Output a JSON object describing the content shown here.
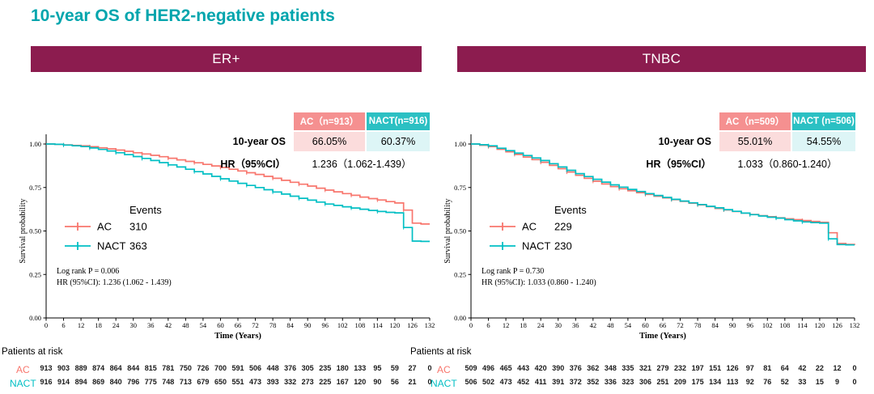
{
  "page_title": "10-year OS of HER2-negative patients",
  "colors": {
    "accent_teal": "#00A5AD",
    "banner": "#8C1C4F",
    "ac": "#F8766D",
    "nact": "#00BFC4",
    "ac_header": "#F59090",
    "nact_header": "#2BC0C3",
    "ac_cell": "#FBDCDC",
    "nact_cell": "#DDF5F6"
  },
  "panels": [
    {
      "banner": "ER+",
      "summary_table": {
        "col_headers": [
          "AC（n=913）",
          "NACT(n=916)"
        ],
        "os_label": "10-year OS",
        "os_values": [
          "66.05%",
          "60.37%"
        ],
        "hr_label": "HR（95%CI）",
        "hr_value": "1.236（1.062-1.439）"
      },
      "risk_title": "Patients at risk",
      "risk_rows": [
        {
          "name": "AC",
          "counts": [
            913,
            903,
            889,
            874,
            864,
            844,
            815,
            781,
            750,
            726,
            700,
            591,
            506,
            448,
            376,
            305,
            235,
            180,
            133,
            95,
            59,
            27,
            0
          ]
        },
        {
          "name": "NACT",
          "counts": [
            916,
            914,
            894,
            869,
            840,
            796,
            775,
            748,
            713,
            679,
            650,
            551,
            473,
            393,
            332,
            273,
            225,
            167,
            120,
            90,
            56,
            21,
            0
          ]
        }
      ]
    },
    {
      "banner": "TNBC",
      "summary_table": {
        "col_headers": [
          "AC（n=509）",
          "NACT (n=506)"
        ],
        "os_label": "10-year OS",
        "os_values": [
          "55.01%",
          "54.55%"
        ],
        "hr_label": "HR（95%CI）",
        "hr_value": "1.033（0.860-1.240）"
      },
      "risk_title": "Patients at risk",
      "risk_rows": [
        {
          "name": "AC",
          "counts": [
            509,
            496,
            465,
            443,
            420,
            390,
            376,
            362,
            348,
            335,
            321,
            279,
            232,
            197,
            151,
            126,
            97,
            81,
            64,
            42,
            22,
            12,
            0
          ]
        },
        {
          "name": "NACT",
          "counts": [
            506,
            502,
            473,
            452,
            411,
            391,
            372,
            352,
            336,
            323,
            306,
            251,
            209,
            175,
            134,
            113,
            92,
            76,
            52,
            33,
            15,
            9,
            0
          ]
        }
      ]
    }
  ],
  "chart_data": [
    {
      "type": "line",
      "title": "ER+",
      "xlabel": "Time (Years)",
      "ylabel": "Survival probability",
      "xlim": [
        0,
        132
      ],
      "ylim": [
        0,
        1
      ],
      "xticks": [
        0,
        6,
        12,
        18,
        24,
        30,
        36,
        42,
        48,
        54,
        60,
        66,
        72,
        78,
        84,
        90,
        96,
        102,
        108,
        114,
        120,
        126,
        132
      ],
      "yticks": [
        0,
        0.25,
        0.5,
        0.75,
        1
      ],
      "ytick_labels": [
        "0.00",
        "0.25",
        "0.50",
        "0.75",
        "1.00"
      ],
      "legend_title": "Events",
      "legend_position": "inside-left",
      "grid": false,
      "annotations": [
        "Log rank P = 0.006",
        "HR (95%CI): 1.236 (1.062 - 1.439)"
      ],
      "series": [
        {
          "name": "AC",
          "color": "#F8766D",
          "events": "310",
          "points": [
            [
              0,
              1
            ],
            [
              3,
              0.998
            ],
            [
              6,
              0.995
            ],
            [
              9,
              0.992
            ],
            [
              12,
              0.99
            ],
            [
              15,
              0.984
            ],
            [
              18,
              0.978
            ],
            [
              21,
              0.972
            ],
            [
              24,
              0.965
            ],
            [
              27,
              0.958
            ],
            [
              30,
              0.95
            ],
            [
              33,
              0.943
            ],
            [
              36,
              0.935
            ],
            [
              39,
              0.927
            ],
            [
              42,
              0.918
            ],
            [
              45,
              0.909
            ],
            [
              48,
              0.9
            ],
            [
              51,
              0.892
            ],
            [
              54,
              0.883
            ],
            [
              57,
              0.874
            ],
            [
              60,
              0.865
            ],
            [
              63,
              0.855
            ],
            [
              66,
              0.845
            ],
            [
              69,
              0.835
            ],
            [
              72,
              0.825
            ],
            [
              75,
              0.814
            ],
            [
              78,
              0.803
            ],
            [
              81,
              0.791
            ],
            [
              84,
              0.78
            ],
            [
              87,
              0.769
            ],
            [
              90,
              0.758
            ],
            [
              93,
              0.746
            ],
            [
              96,
              0.735
            ],
            [
              99,
              0.725
            ],
            [
              102,
              0.715
            ],
            [
              105,
              0.705
            ],
            [
              108,
              0.695
            ],
            [
              111,
              0.686
            ],
            [
              114,
              0.678
            ],
            [
              117,
              0.669
            ],
            [
              120,
              0.661
            ],
            [
              123,
              0.62
            ],
            [
              126,
              0.545
            ],
            [
              129,
              0.54
            ],
            [
              132,
              0.54
            ]
          ]
        },
        {
          "name": "NACT",
          "color": "#00BFC4",
          "events": "363",
          "points": [
            [
              0,
              1
            ],
            [
              3,
              0.998
            ],
            [
              6,
              0.994
            ],
            [
              9,
              0.99
            ],
            [
              12,
              0.985
            ],
            [
              15,
              0.977
            ],
            [
              18,
              0.969
            ],
            [
              21,
              0.96
            ],
            [
              24,
              0.95
            ],
            [
              27,
              0.939
            ],
            [
              30,
              0.928
            ],
            [
              33,
              0.917
            ],
            [
              36,
              0.905
            ],
            [
              39,
              0.893
            ],
            [
              42,
              0.88
            ],
            [
              45,
              0.868
            ],
            [
              48,
              0.855
            ],
            [
              51,
              0.841
            ],
            [
              54,
              0.828
            ],
            [
              57,
              0.814
            ],
            [
              60,
              0.8
            ],
            [
              63,
              0.787
            ],
            [
              66,
              0.774
            ],
            [
              69,
              0.762
            ],
            [
              72,
              0.75
            ],
            [
              75,
              0.737
            ],
            [
              78,
              0.724
            ],
            [
              81,
              0.712
            ],
            [
              84,
              0.7
            ],
            [
              87,
              0.688
            ],
            [
              90,
              0.677
            ],
            [
              93,
              0.666
            ],
            [
              96,
              0.655
            ],
            [
              99,
              0.647
            ],
            [
              102,
              0.639
            ],
            [
              105,
              0.632
            ],
            [
              108,
              0.625
            ],
            [
              111,
              0.618
            ],
            [
              114,
              0.612
            ],
            [
              117,
              0.607
            ],
            [
              120,
              0.604
            ],
            [
              123,
              0.52
            ],
            [
              126,
              0.442
            ],
            [
              129,
              0.44
            ],
            [
              132,
              0.44
            ]
          ]
        }
      ]
    },
    {
      "type": "line",
      "title": "TNBC",
      "xlabel": "Time (Years)",
      "ylabel": "Survival probability",
      "xlim": [
        0,
        132
      ],
      "ylim": [
        0,
        1
      ],
      "xticks": [
        0,
        6,
        12,
        18,
        24,
        30,
        36,
        42,
        48,
        54,
        60,
        66,
        72,
        78,
        84,
        90,
        96,
        102,
        108,
        114,
        120,
        126,
        132
      ],
      "yticks": [
        0,
        0.25,
        0.5,
        0.75,
        1
      ],
      "ytick_labels": [
        "0.00",
        "0.25",
        "0.50",
        "0.75",
        "1.00"
      ],
      "legend_title": "Events",
      "legend_position": "inside-left",
      "grid": false,
      "annotations": [
        "Log rank P = 0.730",
        "HR (95%CI): 1.033 (0.860 - 1.240)"
      ],
      "series": [
        {
          "name": "AC",
          "color": "#F8766D",
          "events": "229",
          "points": [
            [
              0,
              1
            ],
            [
              3,
              0.993
            ],
            [
              6,
              0.985
            ],
            [
              9,
              0.97
            ],
            [
              12,
              0.955
            ],
            [
              15,
              0.94
            ],
            [
              18,
              0.925
            ],
            [
              21,
              0.91
            ],
            [
              24,
              0.895
            ],
            [
              27,
              0.877
            ],
            [
              30,
              0.858
            ],
            [
              33,
              0.839
            ],
            [
              36,
              0.82
            ],
            [
              39,
              0.803
            ],
            [
              42,
              0.786
            ],
            [
              45,
              0.77
            ],
            [
              48,
              0.755
            ],
            [
              51,
              0.743
            ],
            [
              54,
              0.731
            ],
            [
              57,
              0.72
            ],
            [
              60,
              0.71
            ],
            [
              63,
              0.7
            ],
            [
              66,
              0.69
            ],
            [
              69,
              0.68
            ],
            [
              72,
              0.67
            ],
            [
              75,
              0.66
            ],
            [
              78,
              0.65
            ],
            [
              81,
              0.64
            ],
            [
              84,
              0.63
            ],
            [
              87,
              0.621
            ],
            [
              90,
              0.612
            ],
            [
              93,
              0.603
            ],
            [
              96,
              0.595
            ],
            [
              99,
              0.588
            ],
            [
              102,
              0.582
            ],
            [
              105,
              0.576
            ],
            [
              108,
              0.57
            ],
            [
              111,
              0.565
            ],
            [
              114,
              0.56
            ],
            [
              117,
              0.555
            ],
            [
              120,
              0.55
            ],
            [
              123,
              0.49
            ],
            [
              126,
              0.428
            ],
            [
              129,
              0.423
            ],
            [
              132,
              0.42
            ]
          ]
        },
        {
          "name": "NACT",
          "color": "#00BFC4",
          "events": "230",
          "points": [
            [
              0,
              1
            ],
            [
              3,
              0.996
            ],
            [
              6,
              0.99
            ],
            [
              9,
              0.976
            ],
            [
              12,
              0.962
            ],
            [
              15,
              0.948
            ],
            [
              18,
              0.934
            ],
            [
              21,
              0.92
            ],
            [
              24,
              0.905
            ],
            [
              27,
              0.887
            ],
            [
              30,
              0.868
            ],
            [
              33,
              0.849
            ],
            [
              36,
              0.83
            ],
            [
              39,
              0.813
            ],
            [
              42,
              0.797
            ],
            [
              45,
              0.781
            ],
            [
              48,
              0.765
            ],
            [
              51,
              0.752
            ],
            [
              54,
              0.739
            ],
            [
              57,
              0.727
            ],
            [
              60,
              0.715
            ],
            [
              63,
              0.704
            ],
            [
              66,
              0.693
            ],
            [
              69,
              0.682
            ],
            [
              72,
              0.672
            ],
            [
              75,
              0.662
            ],
            [
              78,
              0.652
            ],
            [
              81,
              0.642
            ],
            [
              84,
              0.633
            ],
            [
              87,
              0.623
            ],
            [
              90,
              0.613
            ],
            [
              93,
              0.603
            ],
            [
              96,
              0.594
            ],
            [
              99,
              0.586
            ],
            [
              102,
              0.579
            ],
            [
              105,
              0.574
            ],
            [
              108,
              0.565
            ],
            [
              111,
              0.558
            ],
            [
              114,
              0.552
            ],
            [
              117,
              0.548
            ],
            [
              120,
              0.545
            ],
            [
              123,
              0.455
            ],
            [
              126,
              0.422
            ],
            [
              129,
              0.42
            ],
            [
              132,
              0.42
            ]
          ]
        }
      ]
    }
  ]
}
